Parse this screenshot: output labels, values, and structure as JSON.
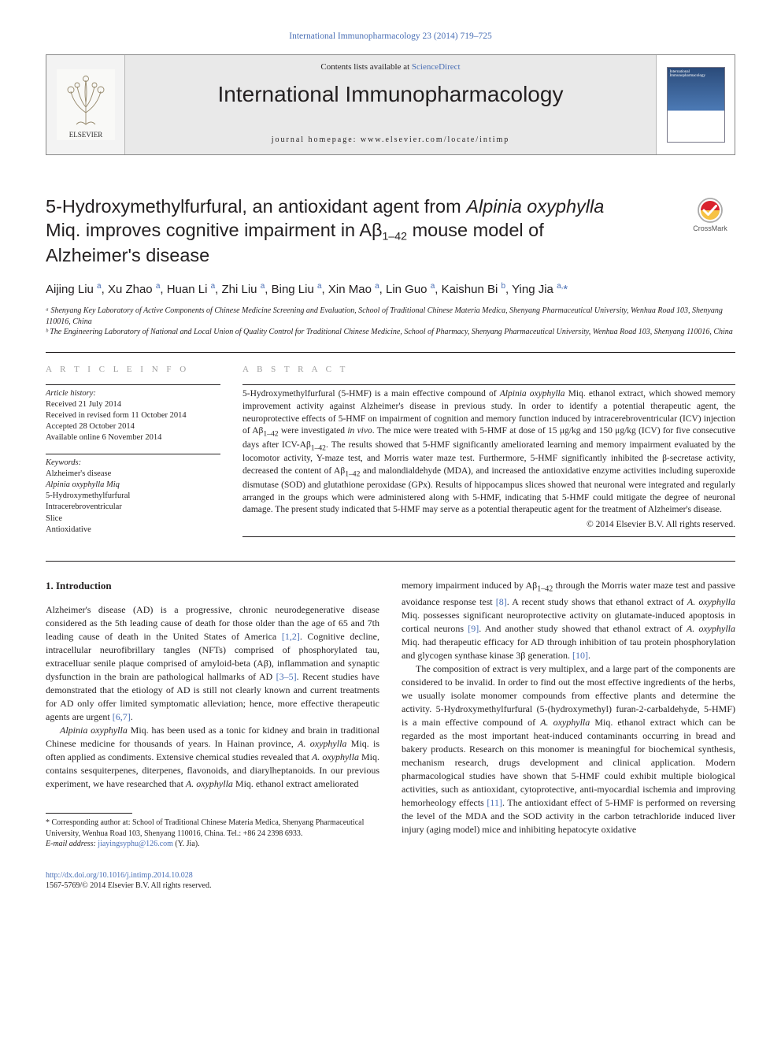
{
  "colors": {
    "link": "#4a6fb5",
    "text": "#231f20",
    "band_bg": "#e9e9e9",
    "band_border": "#888888",
    "sec_head": "#9c9c9c"
  },
  "header": {
    "top_journal_ref": "International Immunopharmacology 23 (2014) 719–725",
    "contents_prefix": "Contents lists available at ",
    "contents_link": "ScienceDirect",
    "journal_name": "International Immunopharmacology",
    "homepage_label": "journal homepage: www.elsevier.com/locate/intimp",
    "elsevier_label": "ELSEVIER"
  },
  "title": {
    "line1": "5-Hydroxymethylfurfural, an antioxidant agent from ",
    "line1_ital": "Alpinia oxyphylla",
    "line2_a": "Miq. improves cognitive impairment in Aβ",
    "line2_sub": "1–42",
    "line2_b": " mouse model of",
    "line3": "Alzheimer's disease"
  },
  "crossmark_label": "CrossMark",
  "authors_html": "Aijing Liu <sup>a</sup>, Xu Zhao <sup>a</sup>, Huan Li <sup>a</sup>, Zhi Liu <sup>a</sup>, Bing Liu <sup>a</sup>, Xin Mao <sup>a</sup>, Lin Guo <sup>a</sup>, Kaishun Bi <sup>b</sup>, Ying Jia <sup>a,</sup><span class='corr'>*</span>",
  "affiliations": [
    "ᵃ Shenyang Key Laboratory of Active Components of Chinese Medicine Screening and Evaluation, School of Traditional Chinese Materia Medica, Shenyang Pharmaceutical University, Wenhua Road 103, Shenyang 110016, China",
    "ᵇ The Engineering Laboratory of National and Local Union of Quality Control for Traditional Chinese Medicine, School of Pharmacy, Shenyang Pharmaceutical University, Wenhua Road 103, Shenyang 110016, China"
  ],
  "article_info": {
    "heading": "A R T I C L E   I N F O",
    "history_label": "Article history:",
    "history": [
      "Received 21 July 2014",
      "Received in revised form 11 October 2014",
      "Accepted 28 October 2014",
      "Available online 6 November 2014"
    ],
    "keywords_label": "Keywords:",
    "keywords": [
      "Alzheimer's disease",
      "Alpinia oxyphylla Miq",
      "5-Hydroxymethylfurfural",
      "Intracerebroventricular",
      "Slice",
      "Antioxidative"
    ]
  },
  "abstract": {
    "heading": "A B S T R A C T",
    "text": "5-Hydroxymethylfurfural (5-HMF) is a main effective compound of <i>Alpinia oxyphylla</i> Miq. ethanol extract, which showed memory improvement activity against Alzheimer's disease in previous study. In order to identify a potential therapeutic agent, the neuroprotective effects of 5-HMF on impairment of cognition and memory function induced by intracerebroventricular (ICV) injection of Aβ<sub>1–42</sub> were investigated <i>in vivo</i>. The mice were treated with 5-HMF at dose of 15 μg/kg and 150 μg/kg (ICV) for five consecutive days after ICV-Aβ<sub>1–42</sub>. The results showed that 5-HMF significantly ameliorated learning and memory impairment evaluated by the locomotor activity, Y-maze test, and Morris water maze test. Furthermore, 5-HMF significantly inhibited the β-secretase activity, decreased the content of Aβ<sub>1–42</sub> and malondialdehyde (MDA), and increased the antioxidative enzyme activities including superoxide dismutase (SOD) and glutathione peroxidase (GPx). Results of hippocampus slices showed that neuronal were integrated and regularly arranged in the groups which were administered along with 5-HMF, indicating that 5-HMF could mitigate the degree of neuronal damage. The present study indicated that 5-HMF may serve as a potential therapeutic agent for the treatment of Alzheimer's disease.",
    "copyright": "© 2014 Elsevier B.V. All rights reserved."
  },
  "intro": {
    "heading": "1. Introduction",
    "p1": "Alzheimer's disease (AD) is a progressive, chronic neurodegenerative disease considered as the 5th leading cause of death for those older than the age of 65 and 7th leading cause of death in the United States of America <span class='ref-link'>[1,2]</span>. Cognitive decline, intracellular neurofibrillary tangles (NFTs) comprised of phosphorylated tau, extracelluar senile plaque comprised of amyloid-beta (Aβ), inflammation and synaptic dysfunction in the brain are pathological hallmarks of AD <span class='ref-link'>[3–5]</span>. Recent studies have demonstrated that the etiology of AD is still not clearly known and current treatments for AD only offer limited symptomatic alleviation; hence, more effective therapeutic agents are urgent <span class='ref-link'>[6,7]</span>.",
    "p2": "<i>Alpinia oxyphylla</i> Miq. has been used as a tonic for kidney and brain in traditional Chinese medicine for thousands of years. In Hainan province, <i>A. oxyphylla</i> Miq. is often applied as condiments. Extensive chemical studies revealed that <i>A. oxyphylla</i> Miq. contains sesquiterpenes, diterpenes, flavonoids, and diarylheptanoids. In our previous experiment, we have researched that <i>A. oxyphylla</i> Miq. ethanol extract ameliorated",
    "p3": "memory impairment induced by Aβ<sub>1–42</sub> through the Morris water maze test and passive avoidance response test <span class='ref-link'>[8]</span>. A recent study shows that ethanol extract of <i>A. oxyphylla</i> Miq. possesses significant neuroprotective activity on glutamate-induced apoptosis in cortical neurons <span class='ref-link'>[9]</span>. And another study showed that ethanol extract of <i>A. oxyphylla</i> Miq. had therapeutic efficacy for AD through inhibition of tau protein phosphorylation and glycogen synthase kinase 3β generation. <span class='ref-link'>[10]</span>.",
    "p4": "The composition of extract is very multiplex, and a large part of the components are considered to be invalid. In order to find out the most effective ingredients of the herbs, we usually isolate monomer compounds from effective plants and determine the activity. 5-Hydroxymethylfurfural (5-(hydroxymethyl) furan-2-carbaldehyde, 5-HMF) is a main effective compound of <i>A. oxyphylla</i> Miq. ethanol extract which can be regarded as the most important heat-induced contaminants occurring in bread and bakery products. Research on this monomer is meaningful for biochemical synthesis, mechanism research, drugs development and clinical application. Modern pharmacological studies have shown that 5-HMF could exhibit multiple biological activities, such as antioxidant, cytoprotective, anti-myocardial ischemia and improving hemorheology effects <span class='ref-link'>[11]</span>. The antioxidant effect of 5-HMF is performed on reversing the level of the MDA and the SOD activity in the carbon tetrachloride induced liver injury (aging model) mice and inhibiting hepatocyte oxidative"
  },
  "footnotes": {
    "corr": "* Corresponding author at: School of Traditional Chinese Materia Medica, Shenyang Pharmaceutical University, Wenhua Road 103, Shenyang 110016, China. Tel.: +86 24 2398 6933.",
    "email_label": "E-mail address: ",
    "email": "jiayingsyphu@126.com",
    "email_tail": " (Y. Jia)."
  },
  "footer": {
    "doi": "http://dx.doi.org/10.1016/j.intimp.2014.10.028",
    "issn_line": "1567-5769/© 2014 Elsevier B.V. All rights reserved."
  }
}
